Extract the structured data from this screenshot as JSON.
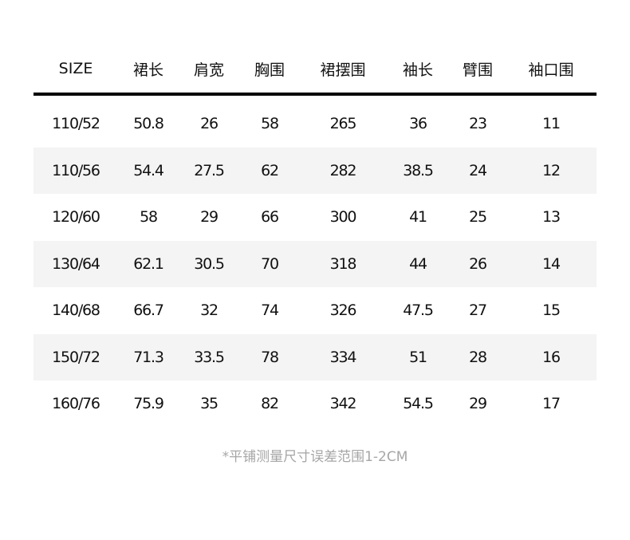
{
  "table": {
    "headers": [
      "SIZE",
      "裙长",
      "肩宽",
      "胸围",
      "裙摆围",
      "袖长",
      "臂围",
      "袖口围"
    ],
    "rows": [
      [
        "110/52",
        "50.8",
        "26",
        "58",
        "265",
        "36",
        "23",
        "11"
      ],
      [
        "110/56",
        "54.4",
        "27.5",
        "62",
        "282",
        "38.5",
        "24",
        "12"
      ],
      [
        "120/60",
        "58",
        "29",
        "66",
        "300",
        "41",
        "25",
        "13"
      ],
      [
        "130/64",
        "62.1",
        "30.5",
        "70",
        "318",
        "44",
        "26",
        "14"
      ],
      [
        "140/68",
        "66.7",
        "32",
        "74",
        "326",
        "47.5",
        "27",
        "15"
      ],
      [
        "150/72",
        "71.3",
        "33.5",
        "78",
        "334",
        "51",
        "28",
        "16"
      ],
      [
        "160/76",
        "75.9",
        "35",
        "82",
        "342",
        "54.5",
        "29",
        "17"
      ]
    ]
  },
  "footnote": "*平铺测量尺寸误差范围1-2CM"
}
